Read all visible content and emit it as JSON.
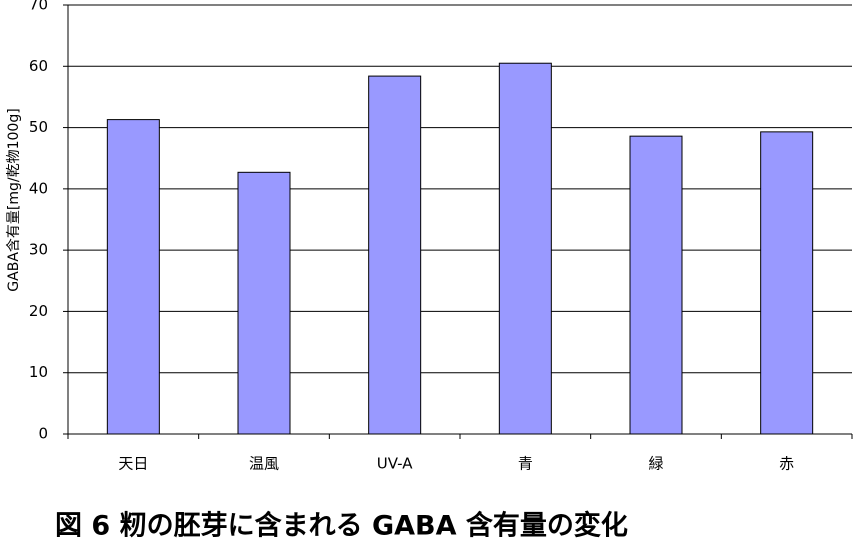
{
  "chart_data": {
    "type": "bar",
    "title": "図 6  籾の胚芽に含まれる GABA 含有量の変化",
    "y_label": "GABA含有量[mg/乾物100g]",
    "categories": [
      "天日",
      "温風",
      "UV-A",
      "青",
      "緑",
      "赤"
    ],
    "values": [
      51.3,
      42.7,
      58.4,
      60.5,
      48.6,
      49.3
    ],
    "color": "#9999ff",
    "ylim": [
      0,
      70
    ],
    "yticks": [
      0,
      10,
      20,
      30,
      40,
      50,
      60,
      70
    ],
    "grid": true
  }
}
